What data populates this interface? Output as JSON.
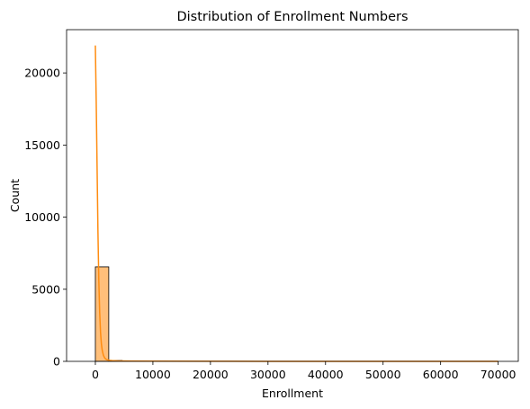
{
  "chart_data": {
    "type": "bar",
    "title": "Distribution of Enrollment Numbers",
    "xlabel": "Enrollment",
    "ylabel": "Count",
    "xlim": [
      -5000,
      73500
    ],
    "ylim": [
      0,
      23000
    ],
    "xticks": [
      {
        "value": 0,
        "label": "0"
      },
      {
        "value": 10000,
        "label": "10000"
      },
      {
        "value": 20000,
        "label": "20000"
      },
      {
        "value": 30000,
        "label": "30000"
      },
      {
        "value": 40000,
        "label": "40000"
      },
      {
        "value": 50000,
        "label": "50000"
      },
      {
        "value": 60000,
        "label": "60000"
      },
      {
        "value": 70000,
        "label": "70000"
      }
    ],
    "yticks": [
      {
        "value": 0,
        "label": "0"
      },
      {
        "value": 5000,
        "label": "5000"
      },
      {
        "value": 10000,
        "label": "10000"
      },
      {
        "value": 15000,
        "label": "15000"
      },
      {
        "value": 20000,
        "label": "20000"
      }
    ],
    "bins": [
      {
        "x0": 0,
        "x1": 2330,
        "count": 6550
      },
      {
        "x0": 2330,
        "x1": 4660,
        "count": 60
      },
      {
        "x0": 4660,
        "x1": 6990,
        "count": 20
      },
      {
        "x0": 6990,
        "x1": 9320,
        "count": 8
      },
      {
        "x0": 9320,
        "x1": 11650,
        "count": 4
      },
      {
        "x0": 11650,
        "x1": 13980,
        "count": 2
      },
      {
        "x0": 13980,
        "x1": 16310,
        "count": 2
      },
      {
        "x0": 16310,
        "x1": 18640,
        "count": 1
      },
      {
        "x0": 18640,
        "x1": 20970,
        "count": 1
      },
      {
        "x0": 20970,
        "x1": 23300,
        "count": 1
      },
      {
        "x0": 23300,
        "x1": 25630,
        "count": 0
      },
      {
        "x0": 25630,
        "x1": 27960,
        "count": 1
      },
      {
        "x0": 27960,
        "x1": 30290,
        "count": 0
      },
      {
        "x0": 30290,
        "x1": 32620,
        "count": 0
      },
      {
        "x0": 32620,
        "x1": 34950,
        "count": 1
      },
      {
        "x0": 34950,
        "x1": 37280,
        "count": 0
      },
      {
        "x0": 37280,
        "x1": 39610,
        "count": 0
      },
      {
        "x0": 39610,
        "x1": 41940,
        "count": 0
      },
      {
        "x0": 41940,
        "x1": 44270,
        "count": 0
      },
      {
        "x0": 44270,
        "x1": 46600,
        "count": 0
      },
      {
        "x0": 46600,
        "x1": 48930,
        "count": 0
      },
      {
        "x0": 48930,
        "x1": 51260,
        "count": 0
      },
      {
        "x0": 51260,
        "x1": 53590,
        "count": 0
      },
      {
        "x0": 53590,
        "x1": 55920,
        "count": 0
      },
      {
        "x0": 55920,
        "x1": 58250,
        "count": 0
      },
      {
        "x0": 58250,
        "x1": 60580,
        "count": 0
      },
      {
        "x0": 60580,
        "x1": 62910,
        "count": 0
      },
      {
        "x0": 62910,
        "x1": 65240,
        "count": 0
      },
      {
        "x0": 65240,
        "x1": 67570,
        "count": 0
      },
      {
        "x0": 67570,
        "x1": 69900,
        "count": 1
      }
    ],
    "kde": {
      "x": [
        0,
        150,
        300,
        450,
        600,
        750,
        900,
        1050,
        1200,
        1400,
        1600,
        1800,
        2100,
        2500,
        3000,
        4000,
        6000,
        10000,
        20000,
        30000,
        40000,
        50000,
        60000,
        70000
      ],
      "y": [
        21900,
        18000,
        13500,
        9000,
        5600,
        3400,
        2000,
        1200,
        750,
        420,
        250,
        160,
        100,
        70,
        50,
        35,
        20,
        12,
        6,
        4,
        3,
        2,
        2,
        1
      ]
    },
    "bar_color": "#ffbf7a",
    "bar_edge_color": "#000000",
    "kde_color": "#ff8c10",
    "grid": false,
    "legend": false
  }
}
